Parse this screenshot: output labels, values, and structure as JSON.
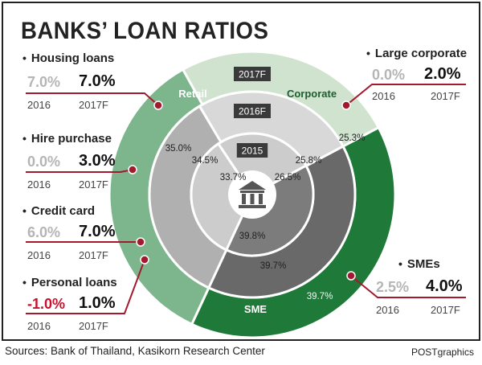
{
  "title": "BANKS’ LOAN RATIOS",
  "footer": {
    "source": "Sources: Bank of Thailand, Kasikorn Research Center",
    "credit": "POSTgraphics"
  },
  "colors": {
    "retail": "#7db68c",
    "corporate": "#cfe3cf",
    "sme": "#1f7a3a",
    "middle_ring": "#b0b0b0",
    "inner_ring": "#cccccc",
    "accent_line": "#a3192d",
    "negative": "#c8102e"
  },
  "year_old_label": "2016",
  "year_new_label": "2017F",
  "segments_loans": [
    {
      "name": "Housing loans",
      "old": "7.0%",
      "new": "7.0%",
      "negative": false
    },
    {
      "name": "Hire purchase",
      "old": "0.0%",
      "new": "3.0%",
      "negative": false
    },
    {
      "name": "Credit card",
      "old": "6.0%",
      "new": "7.0%",
      "negative": false
    },
    {
      "name": "Personal loans",
      "old": "-1.0%",
      "new": "1.0%",
      "negative": true
    },
    {
      "name": "Large corporate",
      "old": "0.0%",
      "new": "2.0%",
      "negative": false
    },
    {
      "name": "SMEs",
      "old": "2.5%",
      "new": "4.0%",
      "negative": false
    }
  ],
  "chart_data": {
    "type": "pie",
    "title": "BANKS’ LOAN RATIOS",
    "rings": [
      {
        "year": "2015",
        "values": {
          "Retail": 33.7,
          "Corporate": 26.5,
          "SME": 39.8
        },
        "labels": [
          "33.7%",
          "26.5%",
          "39.8%"
        ]
      },
      {
        "year": "2016F",
        "values": {
          "Retail": 34.5,
          "Corporate": 25.8,
          "SME": 39.7
        },
        "labels": [
          "34.5%",
          "25.8%",
          "39.7%"
        ]
      },
      {
        "year": "2017F",
        "values": {
          "Retail": 35.0,
          "Corporate": 25.3,
          "SME": 39.7
        },
        "labels": [
          "35.0%",
          "25.3%",
          "39.7%"
        ]
      }
    ],
    "categories": [
      "Retail",
      "Corporate",
      "SME"
    ],
    "outer_segment_names": [
      "Retail",
      "Corporate",
      "SME"
    ]
  }
}
